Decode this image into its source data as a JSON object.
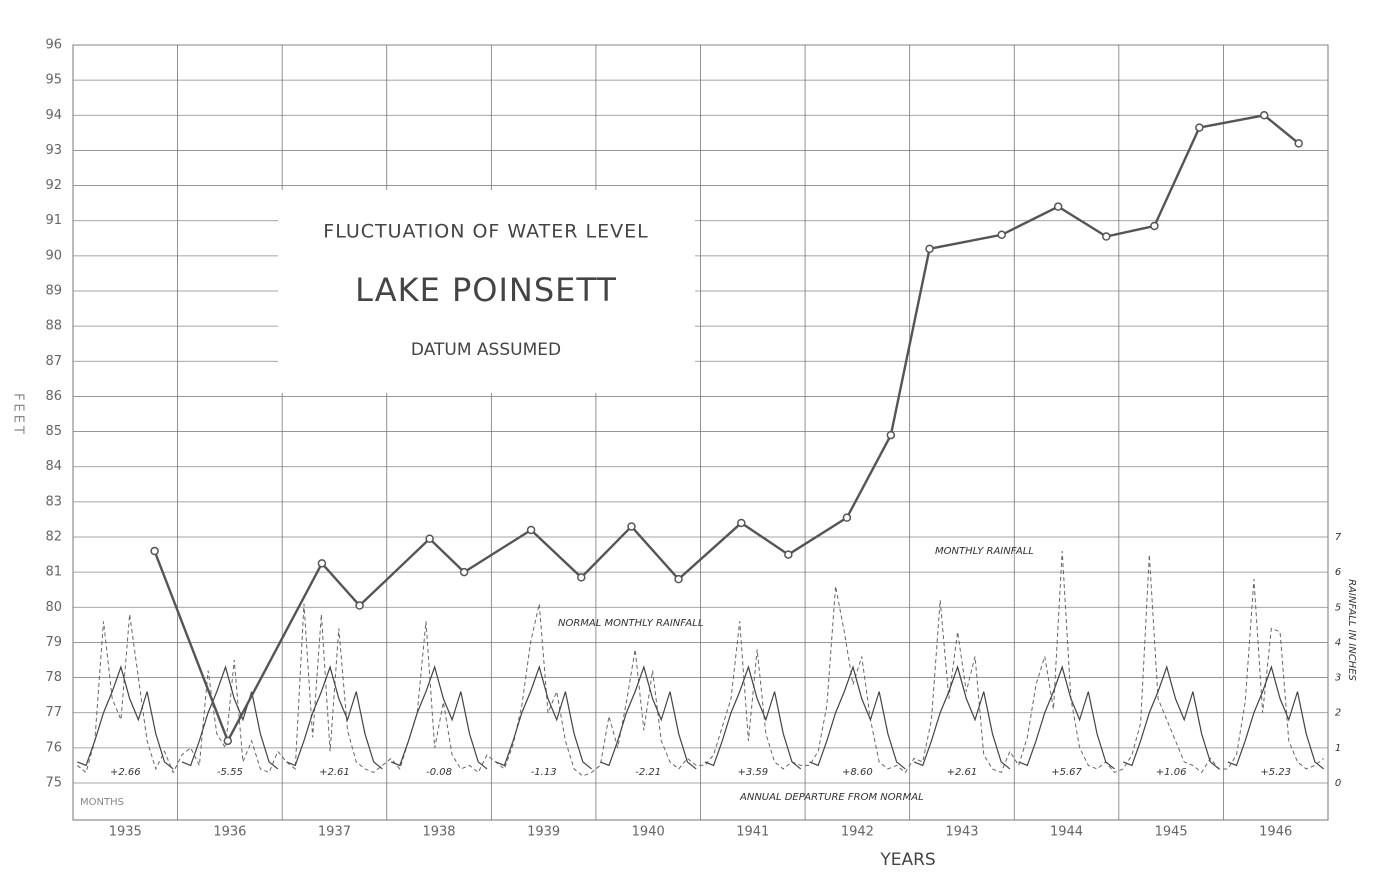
{
  "chart_data": {
    "type": "line",
    "title": "FLUCTUATION OF WATER LEVEL",
    "subtitle": "LAKE POINSETT",
    "note": "DATUM ASSUMED",
    "ylabel": "FEET",
    "xlabel": "YEARS",
    "y2label": "RAINFALL IN INCHES",
    "months_label": "MONTHS",
    "annotations": {
      "monthly": "MONTHLY RAINFALL",
      "normal": "NORMAL MONTHLY RAINFALL",
      "departure": "ANNUAL DEPARTURE FROM NORMAL"
    },
    "annual_departure_labels": [
      "+2.66",
      "-5.55",
      "+2.61",
      "-0.08",
      "-1.13",
      "-2.21",
      "+3.59",
      "+8.60",
      "+2.61",
      "+5.67",
      "+1.06",
      "+5.23"
    ],
    "xlim": [
      1935,
      1947
    ],
    "xticks": [
      {
        "value": 1935.5,
        "label": "1935"
      },
      {
        "value": 1936.5,
        "label": "1936"
      },
      {
        "value": 1937.5,
        "label": "1937"
      },
      {
        "value": 1938.5,
        "label": "1938"
      },
      {
        "value": 1939.5,
        "label": "1939"
      },
      {
        "value": 1940.5,
        "label": "1940"
      },
      {
        "value": 1941.5,
        "label": "1941"
      },
      {
        "value": 1942.5,
        "label": "1942"
      },
      {
        "value": 1943.5,
        "label": "1943"
      },
      {
        "value": 1944.5,
        "label": "1944"
      },
      {
        "value": 1945.5,
        "label": "1945"
      },
      {
        "value": 1946.5,
        "label": "1946"
      }
    ],
    "ylim": [
      75,
      96
    ],
    "yticks": [
      75,
      76,
      77,
      78,
      79,
      80,
      81,
      82,
      83,
      84,
      85,
      86,
      87,
      88,
      89,
      90,
      91,
      92,
      93,
      94,
      95,
      96
    ],
    "y2lim": [
      0,
      21
    ],
    "y2ticks": [
      0,
      1,
      2,
      3,
      4,
      5,
      6,
      7
    ],
    "grid": true,
    "series": [
      {
        "name": "Water level",
        "color": "#555555",
        "x": [
          1935.78,
          1936.48,
          1937.38,
          1937.74,
          1938.41,
          1938.74,
          1939.38,
          1939.86,
          1940.34,
          1940.79,
          1941.39,
          1941.84,
          1942.4,
          1942.82,
          1943.19,
          1943.88,
          1944.42,
          1944.88,
          1945.34,
          1945.77,
          1946.39,
          1946.72
        ],
        "values": [
          81.6,
          76.2,
          81.25,
          80.05,
          81.95,
          81.0,
          82.2,
          80.85,
          82.3,
          80.8,
          82.4,
          81.5,
          82.55,
          84.9,
          90.2,
          90.6,
          91.4,
          90.55,
          90.85,
          93.65,
          94.0,
          93.2
        ]
      },
      {
        "name": "Monthly rainfall",
        "color": "#666666",
        "axis": "y2",
        "values": [
          0.5,
          0.3,
          1.2,
          4.6,
          2.4,
          1.8,
          4.8,
          3.0,
          1.2,
          0.4,
          0.9,
          0.3,
          0.8,
          1.0,
          0.5,
          3.2,
          1.4,
          1.0,
          3.5,
          0.6,
          1.2,
          0.4,
          0.3,
          0.9,
          0.6,
          0.4,
          5.1,
          1.3,
          4.8,
          0.9,
          4.4,
          1.5,
          0.6,
          0.4,
          0.3,
          0.5,
          0.7,
          0.4,
          1.2,
          2.0,
          4.6,
          1.0,
          2.3,
          0.8,
          0.4,
          0.5,
          0.3,
          0.8,
          0.6,
          0.4,
          1.1,
          2.2,
          4.0,
          5.1,
          2.0,
          2.6,
          1.2,
          0.4,
          0.2,
          0.3,
          0.5,
          1.9,
          1.0,
          2.3,
          3.8,
          1.5,
          3.2,
          1.2,
          0.6,
          0.4,
          0.7,
          0.5,
          0.5,
          0.8,
          1.6,
          2.4,
          4.6,
          1.2,
          3.8,
          1.4,
          0.6,
          0.4,
          0.6,
          0.5,
          0.5,
          0.9,
          2.2,
          5.6,
          4.3,
          2.8,
          3.6,
          1.8,
          0.6,
          0.4,
          0.5,
          0.3,
          0.7,
          0.6,
          1.8,
          5.2,
          2.4,
          4.3,
          2.6,
          3.6,
          0.8,
          0.4,
          0.3,
          0.9,
          0.5,
          1.3,
          2.8,
          3.6,
          2.1,
          6.6,
          2.4,
          1.0,
          0.5,
          0.4,
          0.6,
          0.3,
          0.4,
          0.8,
          1.7,
          6.5,
          2.4,
          1.8,
          1.2,
          0.6,
          0.5,
          0.3,
          0.7,
          0.4,
          0.4,
          0.8,
          2.3,
          5.8,
          2.0,
          4.4,
          4.3,
          1.2,
          0.6,
          0.4,
          0.5,
          0.7
        ]
      },
      {
        "name": "Normal monthly rainfall",
        "color": "#444444",
        "axis": "y2",
        "values": [
          0.6,
          0.5,
          1.2,
          2.0,
          2.6,
          3.3,
          2.4,
          1.8,
          2.6,
          1.4,
          0.6,
          0.4
        ]
      }
    ]
  }
}
